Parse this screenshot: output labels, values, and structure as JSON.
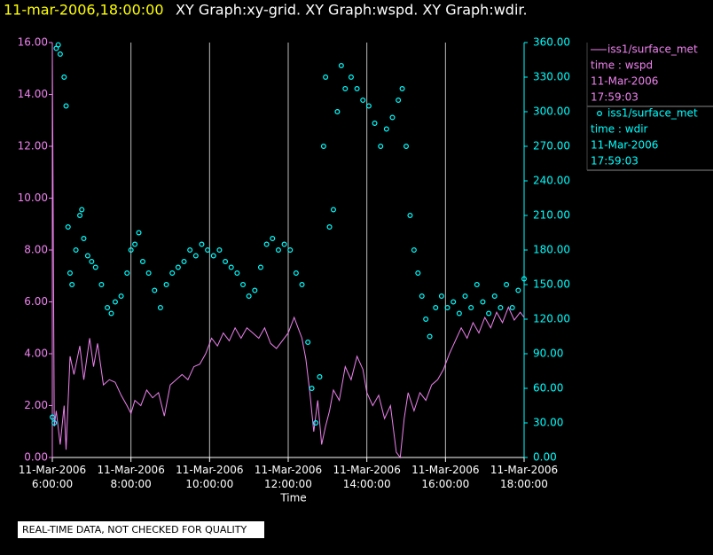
{
  "chart_data": {
    "type": "line",
    "title_stamp": "11-mar-2006,18:00:00",
    "title": "XY Graph:xy-grid.  XY Graph:wspd.  XY Graph:wdir.",
    "x_label": "Time",
    "annotation": "REAL-TIME DATA, NOT CHECKED FOR QUALITY",
    "grid": true,
    "xlim": [
      6,
      18
    ],
    "xticks": [
      {
        "value": 6,
        "label": "11-Mar-2006 6:00:00"
      },
      {
        "value": 8,
        "label": "11-Mar-2006 8:00:00"
      },
      {
        "value": 10,
        "label": "11-Mar-2006 10:00:00"
      },
      {
        "value": 12,
        "label": "11-Mar-2006 12:00:00"
      },
      {
        "value": 14,
        "label": "11-Mar-2006 14:00:00"
      },
      {
        "value": 16,
        "label": "11-Mar-2006 16:00:00"
      },
      {
        "value": 18,
        "label": "11-Mar-2006 18:00:00"
      }
    ],
    "ylim": [
      0,
      16
    ],
    "yticks": [
      {
        "value": 0,
        "label": "0.00"
      },
      {
        "value": 2,
        "label": "2.00"
      },
      {
        "value": 4,
        "label": "4.00"
      },
      {
        "value": 6,
        "label": "6.00"
      },
      {
        "value": 8,
        "label": "8.00"
      },
      {
        "value": 10,
        "label": "10.00"
      },
      {
        "value": 12,
        "label": "12.00"
      },
      {
        "value": 14,
        "label": "14.00"
      },
      {
        "value": 16,
        "label": "16.00"
      }
    ],
    "y2lim": [
      0,
      360
    ],
    "y2ticks": [
      {
        "value": 0,
        "label": "0.00"
      },
      {
        "value": 30,
        "label": "30.00"
      },
      {
        "value": 60,
        "label": "60.00"
      },
      {
        "value": 90,
        "label": "90.00"
      },
      {
        "value": 120,
        "label": "120.00"
      },
      {
        "value": 150,
        "label": "150.00"
      },
      {
        "value": 180,
        "label": "180.00"
      },
      {
        "value": 210,
        "label": "210.00"
      },
      {
        "value": 240,
        "label": "240.00"
      },
      {
        "value": 270,
        "label": "270.00"
      },
      {
        "value": 300,
        "label": "300.00"
      },
      {
        "value": 330,
        "label": "330.00"
      },
      {
        "value": 360,
        "label": "360.00"
      }
    ],
    "series": [
      {
        "name": "iss1/surface_met",
        "legend_details": [
          "time : wspd",
          "11-Mar-2006",
          "17:59:03"
        ],
        "type": "line",
        "color": "#ee82ee",
        "x": [
          6.0,
          6.05,
          6.1,
          6.2,
          6.3,
          6.35,
          6.45,
          6.55,
          6.7,
          6.8,
          6.95,
          7.05,
          7.15,
          7.3,
          7.45,
          7.6,
          7.75,
          7.9,
          8.0,
          8.1,
          8.25,
          8.4,
          8.55,
          8.7,
          8.85,
          9.0,
          9.15,
          9.3,
          9.45,
          9.6,
          9.75,
          9.9,
          10.05,
          10.2,
          10.35,
          10.5,
          10.65,
          10.8,
          10.95,
          11.1,
          11.25,
          11.4,
          11.55,
          11.7,
          11.85,
          12.0,
          12.15,
          12.25,
          12.35,
          12.45,
          12.55,
          12.65,
          12.75,
          12.85,
          12.95,
          13.05,
          13.15,
          13.3,
          13.45,
          13.6,
          13.75,
          13.9,
          14.0,
          14.15,
          14.3,
          14.45,
          14.6,
          14.75,
          14.85,
          14.95,
          15.05,
          15.2,
          15.35,
          15.5,
          15.65,
          15.8,
          15.95,
          16.1,
          16.25,
          16.4,
          16.55,
          16.7,
          16.85,
          17.0,
          17.15,
          17.3,
          17.45,
          17.6,
          17.75,
          17.9,
          18.0
        ],
        "values": [
          15.8,
          1.2,
          1.8,
          0.5,
          2.0,
          0.3,
          3.9,
          3.2,
          4.3,
          3.0,
          4.6,
          3.5,
          4.4,
          2.8,
          3.0,
          2.9,
          2.4,
          2.0,
          1.7,
          2.2,
          2.0,
          2.6,
          2.3,
          2.5,
          1.6,
          2.8,
          3.0,
          3.2,
          3.0,
          3.5,
          3.6,
          4.0,
          4.6,
          4.3,
          4.8,
          4.5,
          5.0,
          4.6,
          5.0,
          4.8,
          4.6,
          5.0,
          4.4,
          4.2,
          4.5,
          4.8,
          5.4,
          5.0,
          4.6,
          3.8,
          2.5,
          1.0,
          2.2,
          0.5,
          1.2,
          1.8,
          2.6,
          2.2,
          3.5,
          3.0,
          3.9,
          3.4,
          2.5,
          2.0,
          2.4,
          1.5,
          2.0,
          0.2,
          0.0,
          1.5,
          2.5,
          1.8,
          2.5,
          2.2,
          2.8,
          3.0,
          3.4,
          4.0,
          4.5,
          5.0,
          4.6,
          5.2,
          4.8,
          5.4,
          5.0,
          5.6,
          5.2,
          5.8,
          5.3,
          5.6,
          5.4
        ]
      },
      {
        "name": "iss1/surface_met",
        "legend_details": [
          "time : wdir",
          "11-Mar-2006",
          "17:59:03"
        ],
        "type": "scatter",
        "axis": "y2",
        "color": "#00ffff",
        "x": [
          6.0,
          6.05,
          6.1,
          6.15,
          6.2,
          6.3,
          6.35,
          6.4,
          6.45,
          6.5,
          6.6,
          6.7,
          6.75,
          6.8,
          6.9,
          7.0,
          7.1,
          7.25,
          7.4,
          7.5,
          7.6,
          7.75,
          7.9,
          8.0,
          8.1,
          8.2,
          8.3,
          8.45,
          8.6,
          8.75,
          8.9,
          9.05,
          9.2,
          9.35,
          9.5,
          9.65,
          9.8,
          9.95,
          10.1,
          10.25,
          10.4,
          10.55,
          10.7,
          10.85,
          11.0,
          11.15,
          11.3,
          11.45,
          11.6,
          11.75,
          11.9,
          12.05,
          12.2,
          12.35,
          12.5,
          12.6,
          12.7,
          12.8,
          12.9,
          12.95,
          13.05,
          13.15,
          13.25,
          13.35,
          13.45,
          13.6,
          13.75,
          13.9,
          14.05,
          14.2,
          14.35,
          14.5,
          14.65,
          14.8,
          14.9,
          15.0,
          15.1,
          15.2,
          15.3,
          15.4,
          15.5,
          15.6,
          15.75,
          15.9,
          16.05,
          16.2,
          16.35,
          16.5,
          16.65,
          16.8,
          16.95,
          17.1,
          17.25,
          17.4,
          17.55,
          17.7,
          17.85,
          18.0
        ],
        "values": [
          35,
          30,
          355,
          358,
          350,
          330,
          305,
          200,
          160,
          150,
          180,
          210,
          215,
          190,
          175,
          170,
          165,
          150,
          130,
          125,
          135,
          140,
          160,
          180,
          185,
          195,
          170,
          160,
          145,
          130,
          150,
          160,
          165,
          170,
          180,
          175,
          185,
          180,
          175,
          180,
          170,
          165,
          160,
          150,
          140,
          145,
          165,
          185,
          190,
          180,
          185,
          180,
          160,
          150,
          100,
          60,
          30,
          70,
          270,
          330,
          200,
          215,
          300,
          340,
          320,
          330,
          320,
          310,
          305,
          290,
          270,
          285,
          295,
          310,
          320,
          270,
          210,
          180,
          160,
          140,
          120,
          105,
          130,
          140,
          130,
          135,
          125,
          140,
          130,
          150,
          135,
          125,
          140,
          130,
          150,
          130,
          145,
          155
        ]
      }
    ]
  }
}
